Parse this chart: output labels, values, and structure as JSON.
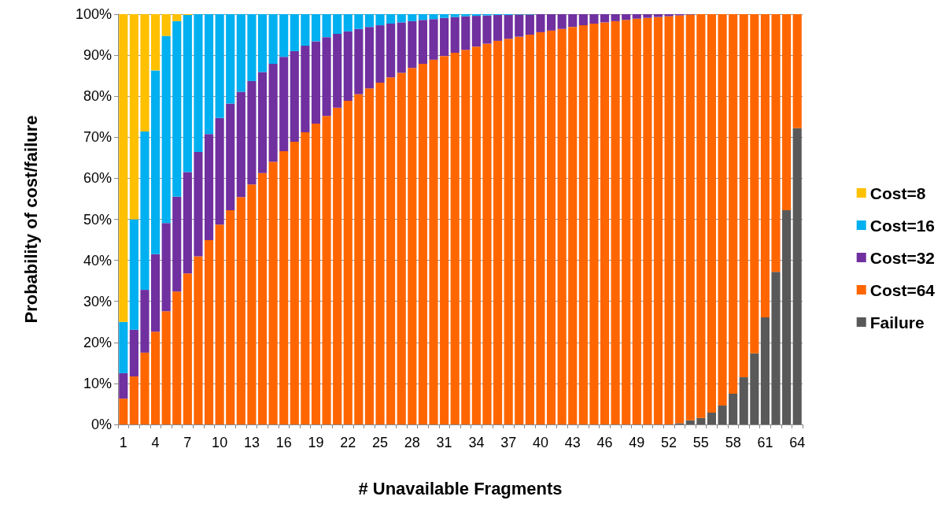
{
  "chart_data": {
    "type": "bar",
    "stacked": true,
    "xlabel": "# Unavailable Fragments",
    "ylabel": "Probability of cost/failure",
    "categories": [
      "1",
      null,
      null,
      "4",
      null,
      null,
      "7",
      null,
      null,
      "10",
      null,
      null,
      "13",
      null,
      null,
      "16",
      null,
      null,
      "19",
      null,
      null,
      "22",
      null,
      null,
      "25",
      null,
      null,
      "28",
      null,
      null,
      "31",
      null,
      null,
      "34",
      null,
      null,
      "37",
      null,
      null,
      "40",
      null,
      null,
      "43",
      null,
      null,
      "46",
      null,
      null,
      "49",
      null,
      null,
      "52",
      null,
      null,
      "55",
      null,
      null,
      "58",
      null,
      null,
      "61",
      null,
      null,
      "64"
    ],
    "series": [
      {
        "name": "Failure",
        "color": "#595959",
        "values": [
          0,
          0,
          0,
          0,
          0,
          0,
          0,
          0,
          0,
          0,
          0,
          0,
          0,
          0,
          0,
          0,
          0,
          0,
          0,
          0,
          0,
          0,
          0,
          0,
          0,
          0,
          0,
          0,
          0,
          0,
          0,
          0,
          0,
          0,
          0,
          0,
          0,
          0,
          0,
          0,
          0,
          0,
          0,
          0,
          0,
          0,
          0,
          0,
          0,
          0,
          0,
          null,
          0.3,
          1.0,
          1.6,
          2.9,
          4.6,
          7.5,
          11.5,
          17.3,
          26.1,
          37.2,
          52.2,
          72.2
        ]
      },
      {
        "name": "Cost=64",
        "color": "#ff6600",
        "values": [
          6.3,
          11.7,
          17.5,
          22.6,
          27.6,
          32.4,
          36.8,
          41.0,
          44.9,
          48.7,
          52.2,
          55.4,
          58.5,
          61.3,
          64.0,
          66.6,
          68.9,
          71.2,
          73.3,
          75.2,
          77.2,
          78.9,
          80.5,
          81.9,
          83.3,
          84.6,
          85.7,
          86.9,
          87.9,
          88.9,
          89.8,
          90.6,
          91.3,
          92.1,
          92.8,
          93.5,
          94.0,
          94.5,
          95.0,
          95.6,
          96.0,
          96.4,
          96.9,
          97.3,
          97.7,
          98.0,
          98.3,
          98.6,
          98.9,
          99.1,
          99.3,
          99.5,
          99.4,
          98.9,
          98.4,
          97.1,
          95.4,
          92.5,
          88.5,
          82.7,
          73.9,
          62.8,
          47.8,
          27.8
        ]
      },
      {
        "name": "Cost=32",
        "color": "#7030a0",
        "values": [
          6.2,
          11.4,
          15.3,
          18.9,
          21.5,
          23.1,
          24.7,
          25.4,
          25.9,
          26.0,
          26.0,
          25.7,
          25.2,
          24.6,
          23.9,
          23.0,
          22.1,
          21.1,
          20.1,
          19.2,
          18.0,
          16.9,
          15.9,
          15.0,
          14.0,
          13.1,
          12.3,
          11.4,
          10.7,
          9.9,
          9.3,
          8.7,
          8.2,
          7.5,
          6.9,
          6.3,
          5.8,
          5.4,
          4.9,
          4.4,
          4.0,
          3.6,
          3.1,
          2.7,
          2.3,
          2.0,
          1.7,
          1.4,
          1.1,
          0.9,
          0.7,
          0.5,
          0.3,
          0.1,
          0,
          0,
          0,
          0,
          0,
          0,
          0,
          0,
          0,
          0
        ]
      },
      {
        "name": "Cost=16",
        "color": "#00b0f0",
        "values": [
          12.5,
          26.9,
          38.6,
          44.8,
          45.6,
          42.8,
          38.3,
          33.6,
          29.2,
          25.3,
          21.8,
          18.9,
          16.3,
          14.1,
          12.1,
          10.4,
          9.0,
          7.7,
          6.6,
          5.6,
          4.8,
          4.2,
          3.6,
          3.1,
          2.7,
          2.3,
          2.0,
          1.7,
          1.4,
          1.2,
          0.9,
          0.7,
          0.5,
          0.4,
          0.3,
          0.2,
          0.2,
          0.1,
          0.1,
          0,
          0,
          0,
          0,
          0,
          0,
          0,
          0,
          0,
          0,
          0,
          0,
          0,
          0,
          0,
          0,
          0,
          0,
          0,
          0,
          0,
          0,
          0,
          0,
          0
        ]
      },
      {
        "name": "Cost=8",
        "color": "#ffc000",
        "values": [
          75,
          50,
          28.6,
          13.7,
          5.3,
          1.7,
          0.2,
          0,
          0,
          0,
          0,
          0,
          0,
          0,
          0,
          0,
          0,
          0,
          0,
          0,
          0,
          0,
          0,
          0,
          0,
          0,
          0,
          0,
          0,
          0,
          0,
          0,
          0,
          0,
          0,
          0,
          0,
          0,
          0,
          0,
          0,
          0,
          0,
          0,
          0,
          0,
          0,
          0,
          0,
          0,
          0,
          0,
          0,
          0,
          0,
          0,
          0,
          0,
          0,
          0,
          0,
          0,
          0,
          0
        ]
      }
    ],
    "ylim": [
      0,
      100
    ],
    "yticks": [
      {
        "value": 0,
        "label": "0%"
      },
      {
        "value": 10,
        "label": "10%"
      },
      {
        "value": 20,
        "label": "20%"
      },
      {
        "value": 30,
        "label": "30%"
      },
      {
        "value": 40,
        "label": "40%"
      },
      {
        "value": 50,
        "label": "50%"
      },
      {
        "value": 60,
        "label": "60%"
      },
      {
        "value": 70,
        "label": "70%"
      },
      {
        "value": 80,
        "label": "80%"
      },
      {
        "value": 90,
        "label": "90%"
      },
      {
        "value": 100,
        "label": "100%"
      }
    ],
    "grid": "y",
    "legend": "right"
  }
}
